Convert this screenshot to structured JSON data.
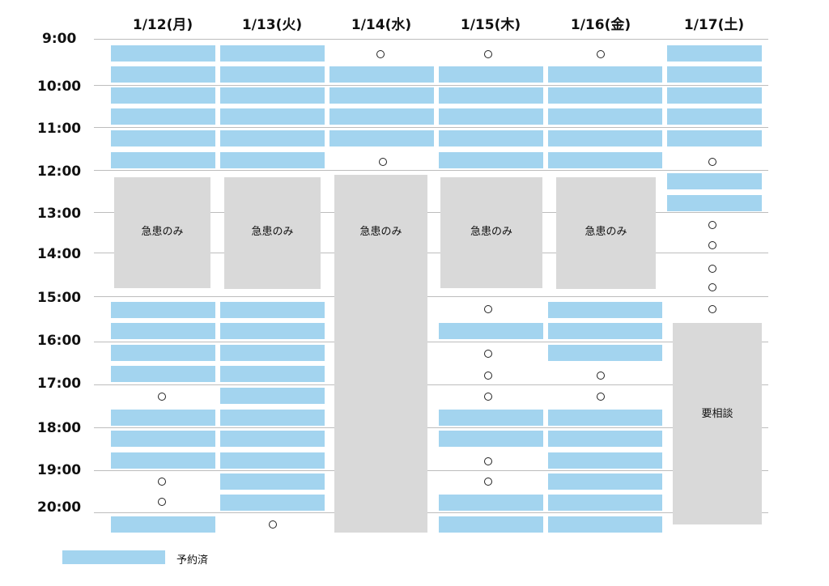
{
  "dates": [
    "1/12(月)",
    "1/13(火)",
    "1/14(水)",
    "1/15(木)",
    "1/16(金)",
    "1/17(土)"
  ],
  "times": [
    "9:00",
    "10:00",
    "11:00",
    "12:00",
    "13:00",
    "14:00",
    "15:00",
    "16:00",
    "17:00",
    "18:00",
    "19:00",
    "20:00"
  ],
  "blocks": {
    "emergency_label": "急患のみ",
    "consult_label": "要相談"
  },
  "legend": {
    "label": "予約済"
  },
  "colors": {
    "booked": "#a3d4ef",
    "block": "#d9d9d9",
    "grid": "#bdbdbd"
  },
  "availability_symbol": "circle (○) = available slot"
}
